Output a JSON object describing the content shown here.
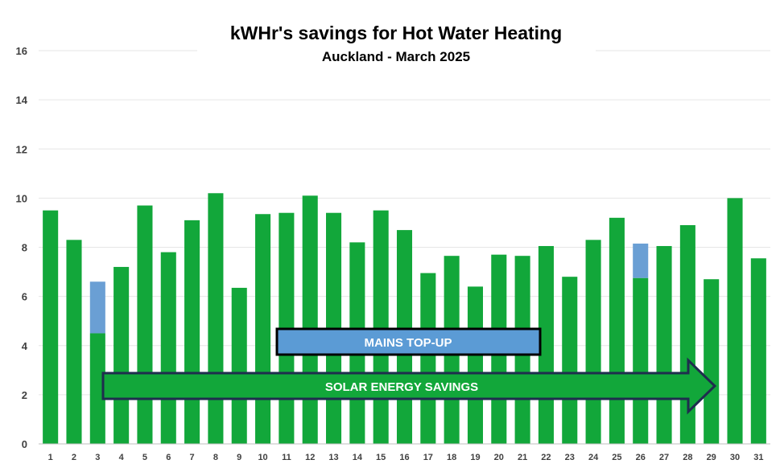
{
  "chart_data": {
    "type": "bar",
    "stacked": true,
    "title": "kWHr's savings for Hot Water Heating",
    "subtitle": "Auckland - March 2025",
    "xlabel": "",
    "ylabel": "",
    "ylim": [
      0,
      16
    ],
    "y_ticks": [
      0,
      2,
      4,
      6,
      8,
      10,
      12,
      14,
      16
    ],
    "grid": true,
    "categories": [
      "1",
      "2",
      "3",
      "4",
      "5",
      "6",
      "7",
      "8",
      "9",
      "10",
      "11",
      "12",
      "13",
      "14",
      "15",
      "16",
      "17",
      "18",
      "19",
      "20",
      "21",
      "22",
      "23",
      "24",
      "25",
      "26",
      "27",
      "28",
      "29",
      "30",
      "31"
    ],
    "series": [
      {
        "name": "SOLAR ENERGY SAVINGS",
        "color": "#12a73a",
        "values": [
          9.5,
          8.3,
          4.5,
          7.2,
          9.7,
          7.8,
          9.1,
          10.2,
          6.35,
          9.35,
          9.4,
          10.1,
          9.4,
          8.2,
          9.5,
          8.7,
          6.95,
          7.65,
          6.4,
          7.7,
          7.65,
          8.05,
          6.8,
          8.3,
          9.2,
          6.75,
          8.05,
          8.9,
          6.7,
          10.0,
          7.55
        ]
      },
      {
        "name": "MAINS TOP-UP",
        "color": "#6a9fd4",
        "values": [
          0,
          0,
          2.1,
          0,
          0,
          0,
          0,
          0,
          0,
          0,
          0,
          0,
          0,
          0,
          0,
          0,
          0,
          0,
          0,
          0,
          0,
          0,
          0,
          0,
          0,
          1.4,
          0,
          0,
          0,
          0,
          0
        ]
      }
    ],
    "annotations": {
      "mains_label": "MAINS TOP-UP",
      "mains_color": "#5b9bd5",
      "solar_label": "SOLAR ENERGY SAVINGS",
      "solar_color": "#12a73a",
      "outline_color": "#1f2d4e"
    }
  }
}
